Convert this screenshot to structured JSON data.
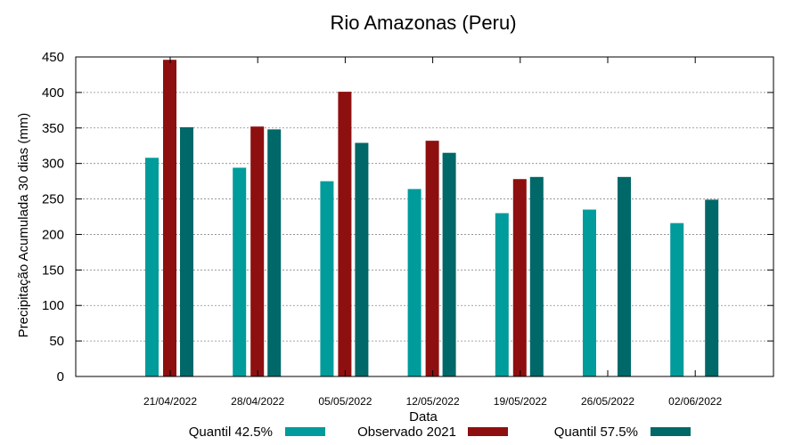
{
  "chart_data": {
    "type": "bar",
    "title": "Rio Amazonas (Peru)",
    "xlabel": "Data",
    "ylabel": "Precipitação Acumulada 30 dias (mm)",
    "ylim": [
      0,
      450
    ],
    "yticks": [
      0,
      50,
      100,
      150,
      200,
      250,
      300,
      350,
      400,
      450
    ],
    "grid": true,
    "legend": "bottom",
    "categories": [
      "21/04/2022",
      "28/04/2022",
      "05/05/2022",
      "12/05/2022",
      "19/05/2022",
      "26/05/2022",
      "02/06/2022"
    ],
    "series": [
      {
        "name": "Quantil 42.5%",
        "color": "#009b9b",
        "values": [
          308,
          294,
          275,
          264,
          230,
          235,
          216
        ]
      },
      {
        "name": "Observado 2021",
        "color": "#8e0f0f",
        "values": [
          446,
          352,
          401,
          332,
          278,
          null,
          null
        ]
      },
      {
        "name": "Quantil 57.5%",
        "color": "#006868",
        "values": [
          351,
          348,
          329,
          315,
          281,
          281,
          249
        ]
      }
    ]
  }
}
